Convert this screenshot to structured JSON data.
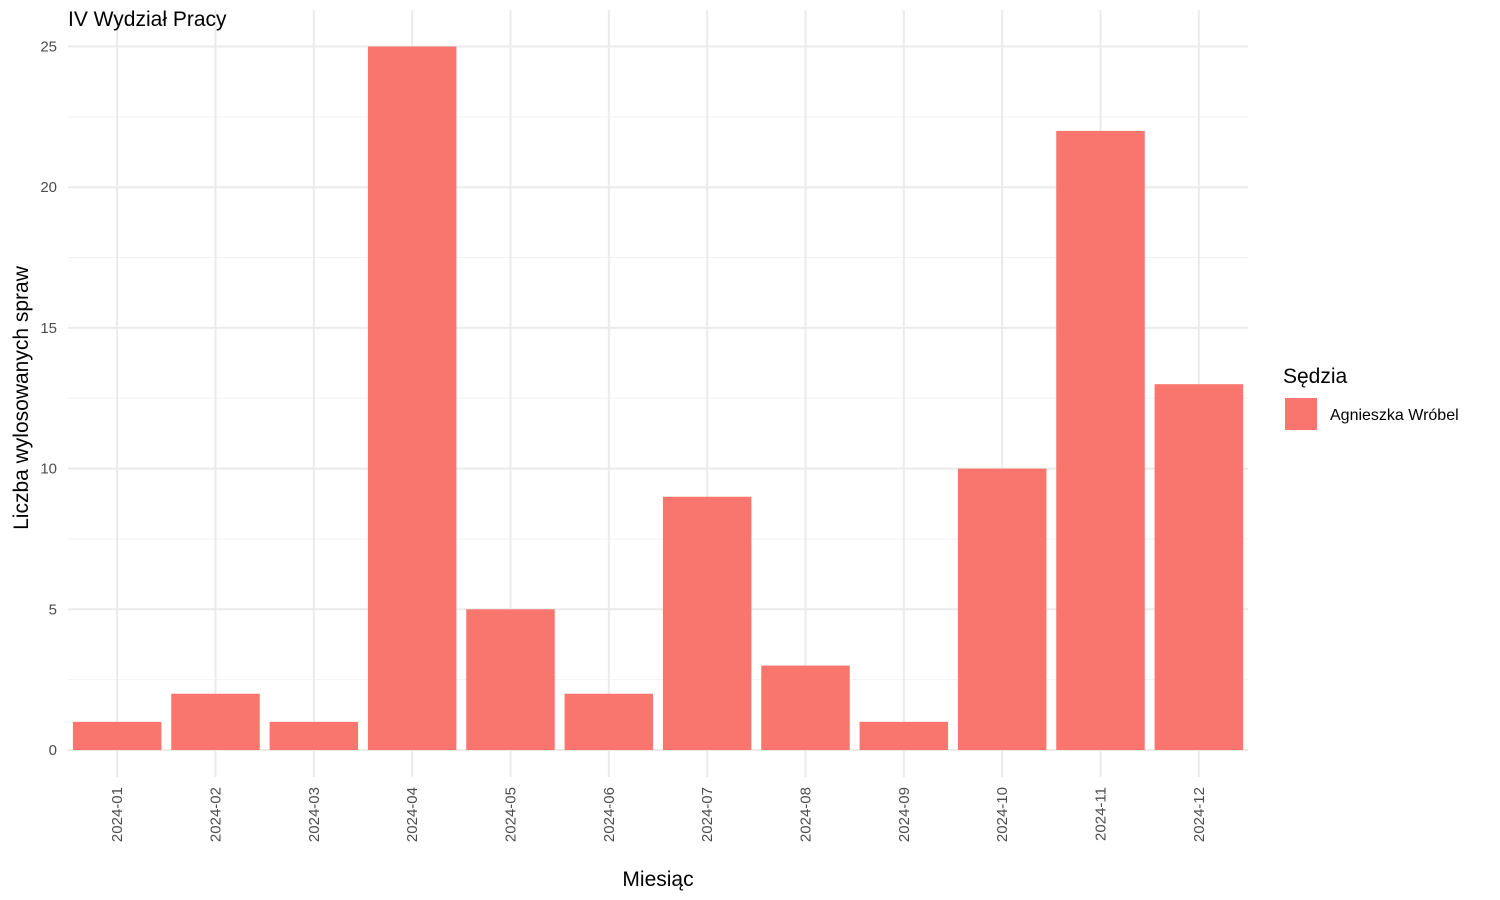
{
  "chart_data": {
    "type": "bar",
    "title": "IV Wydział Pracy",
    "xlabel": "Miesiąc",
    "ylabel": "Liczba wylosowanych spraw",
    "categories": [
      "2024-01",
      "2024-02",
      "2024-03",
      "2024-04",
      "2024-05",
      "2024-06",
      "2024-07",
      "2024-08",
      "2024-09",
      "2024-10",
      "2024-11",
      "2024-12"
    ],
    "series": [
      {
        "name": "Agnieszka Wróbel",
        "color": "#F8766D",
        "values": [
          1,
          2,
          1,
          25,
          5,
          2,
          9,
          3,
          1,
          10,
          22,
          13
        ]
      }
    ],
    "ylim": [
      0,
      25
    ],
    "yticks": [
      0,
      5,
      10,
      15,
      20,
      25
    ],
    "grid": true,
    "legend": {
      "title": "Sędzia",
      "position": "right"
    }
  }
}
